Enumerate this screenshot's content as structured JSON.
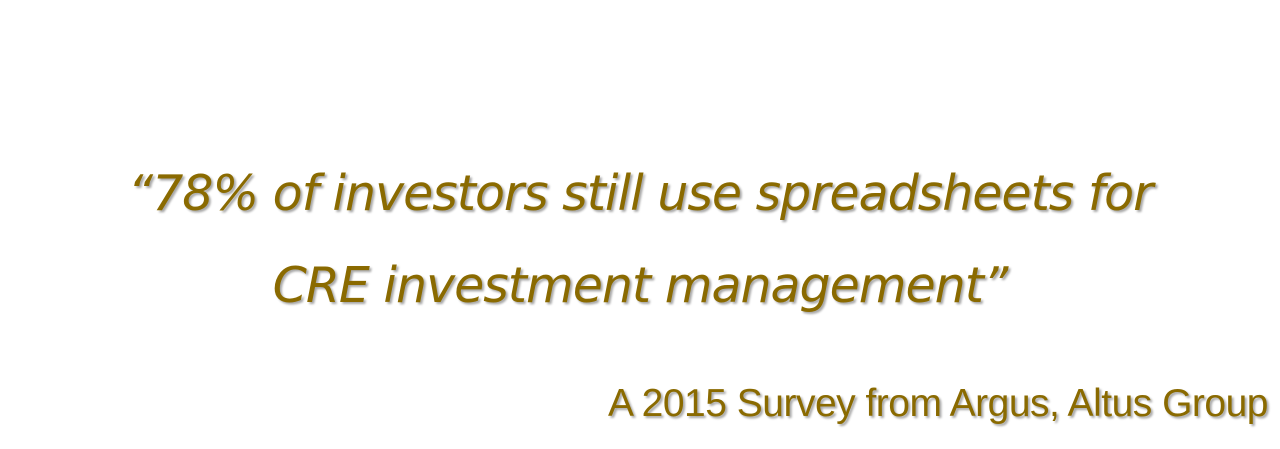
{
  "quote": {
    "line1": "“78% of investors still use spreadsheets for",
    "line2": "CRE investment management”"
  },
  "attribution": "A 2015 Survey from Argus, Altus Group",
  "colors": {
    "text": "#8a6a00",
    "background": "#ffffff"
  }
}
